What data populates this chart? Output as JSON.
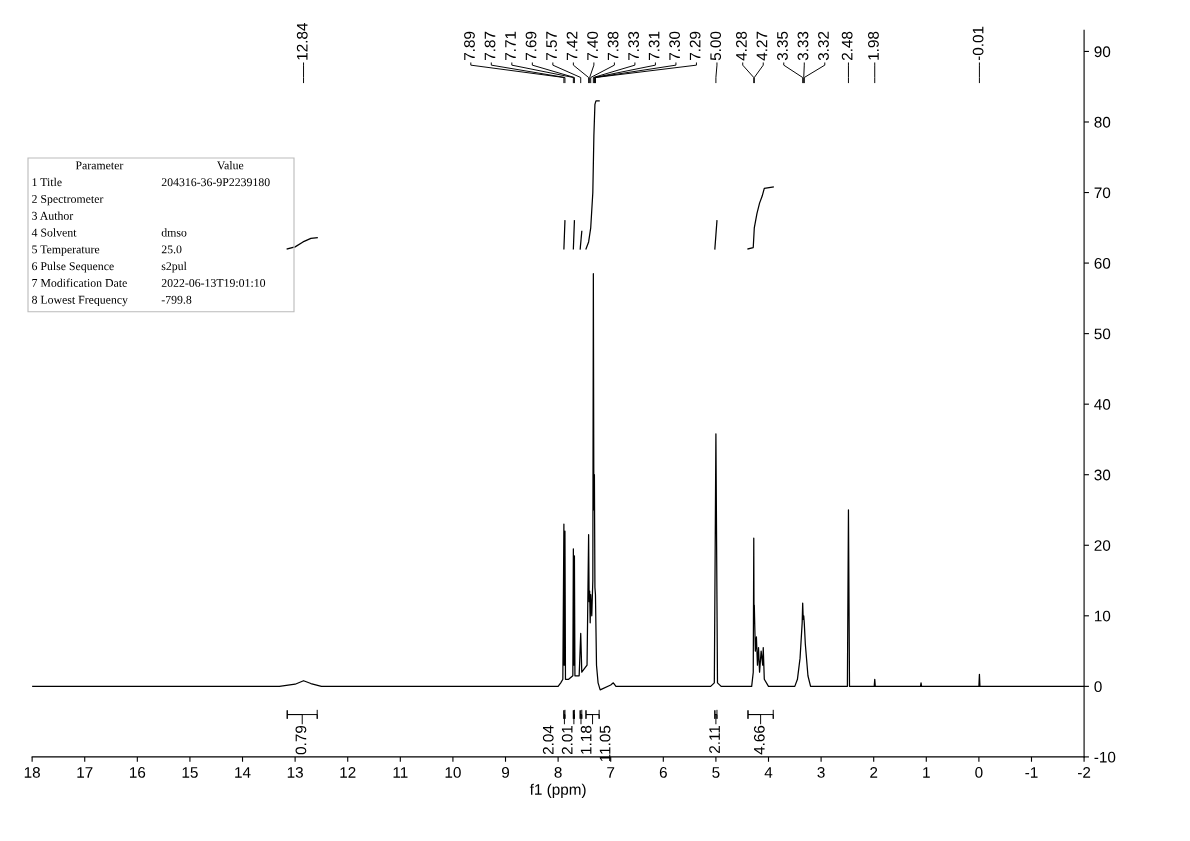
{
  "chart_data": {
    "type": "line",
    "xlabel": "f1 (ppm)",
    "xlim": [
      18,
      -2
    ],
    "xticks": [
      18,
      17,
      16,
      15,
      14,
      13,
      12,
      11,
      10,
      9,
      8,
      7,
      6,
      5,
      4,
      3,
      2,
      1,
      0,
      -1,
      -2
    ],
    "ylim": [
      -10,
      93
    ],
    "yticks": [
      -10,
      0,
      10,
      20,
      30,
      40,
      50,
      60,
      70,
      80,
      90
    ],
    "grid": false,
    "legend": false,
    "series": [
      {
        "color": "#000000",
        "x": [
          18,
          13.3,
          13.0,
          12.84,
          12.7,
          12.5,
          8.0,
          7.95,
          7.91,
          7.89,
          7.885,
          7.875,
          7.87,
          7.86,
          7.8,
          7.72,
          7.71,
          7.7,
          7.69,
          7.68,
          7.6,
          7.57,
          7.55,
          7.5,
          7.45,
          7.42,
          7.41,
          7.4,
          7.39,
          7.38,
          7.36,
          7.34,
          7.33,
          7.32,
          7.31,
          7.3,
          7.29,
          7.27,
          7.24,
          7.2,
          7.0,
          6.95,
          6.9,
          5.1,
          5.03,
          5.0,
          4.97,
          4.9,
          4.32,
          4.29,
          4.28,
          4.275,
          4.27,
          4.25,
          4.23,
          4.21,
          4.19,
          4.17,
          4.14,
          4.11,
          4.1,
          4.08,
          4.0,
          3.5,
          3.45,
          3.4,
          3.36,
          3.35,
          3.34,
          3.33,
          3.32,
          3.3,
          3.25,
          3.2,
          2.5,
          2.48,
          2.46,
          1.99,
          1.98,
          1.97,
          1.11,
          1.1,
          1.09,
          0.0,
          -0.01,
          -0.02,
          -2
        ],
        "values": [
          0,
          0,
          0.3,
          0.8,
          0.4,
          0,
          0,
          0.5,
          1,
          23,
          3,
          3,
          22,
          1,
          1,
          1.5,
          19.5,
          3,
          18.5,
          1.5,
          1.5,
          7.5,
          2,
          2.5,
          3,
          21.5,
          12,
          13.5,
          9,
          13,
          10,
          15,
          58.5,
          25,
          30,
          14,
          13,
          3,
          0.5,
          -0.5,
          0.2,
          0.5,
          0,
          0,
          0.5,
          35.8,
          0.5,
          0,
          0,
          2,
          21,
          9,
          11.5,
          5,
          7,
          3,
          5.5,
          2,
          5,
          3,
          5.5,
          1,
          0,
          0,
          1,
          4,
          9,
          11.8,
          9.5,
          10,
          9,
          6,
          1.5,
          0,
          0,
          25,
          0,
          0,
          1,
          0,
          0,
          0.5,
          0,
          0,
          1.7,
          0,
          0
        ]
      },
      {
        "color": "#000000",
        "x": [
          13.15,
          13.0,
          12.85,
          12.7,
          12.58
        ],
        "values": [
          62,
          62.3,
          63,
          63.5,
          63.6
        ]
      },
      {
        "color": "#000000",
        "x": [
          7.89,
          7.88,
          7.87
        ],
        "values": [
          62,
          64,
          66
        ]
      },
      {
        "color": "#000000",
        "x": [
          7.71,
          7.7,
          7.69
        ],
        "values": [
          62,
          64,
          66
        ]
      },
      {
        "color": "#000000",
        "x": [
          7.58,
          7.55
        ],
        "values": [
          62,
          64.5
        ]
      },
      {
        "color": "#000000",
        "x": [
          7.47,
          7.42,
          7.38,
          7.34,
          7.32,
          7.3,
          7.28,
          7.22
        ],
        "values": [
          62,
          63,
          65,
          70,
          78,
          82.5,
          83,
          83
        ]
      },
      {
        "color": "#000000",
        "x": [
          5.02,
          5.0,
          4.98
        ],
        "values": [
          62,
          64,
          66
        ]
      },
      {
        "color": "#000000",
        "x": [
          4.39,
          4.29,
          4.27,
          4.22,
          4.17,
          4.12,
          4.08,
          3.91
        ],
        "values": [
          62,
          62.2,
          65,
          67,
          68.5,
          69.5,
          70.6,
          70.8
        ]
      }
    ],
    "annotations": [
      "12.84",
      "7.89",
      "7.87",
      "7.71",
      "7.69",
      "7.57",
      "7.42",
      "7.40",
      "7.38",
      "7.33",
      "7.31",
      "7.30",
      "7.29",
      "5.00",
      "4.28",
      "4.27",
      "3.35",
      "3.33",
      "3.32",
      "2.48",
      "1.98",
      "-0.01",
      "0.79",
      "2.04",
      "2.01",
      "1.18",
      "11.05",
      "2.11",
      "4.66",
      "Parameter\tValue",
      "1 Title\t204316-36-9P2239180",
      "2 Spectrometer",
      "3 Author",
      "4 Solvent\tdmso",
      "5 Temperature\t25.0",
      "6 Pulse Sequence\ts2pul",
      "7 Modification Date\t2022-06-13T19:01:10",
      "8 Lowest Frequency\t-799.8"
    ]
  }
}
